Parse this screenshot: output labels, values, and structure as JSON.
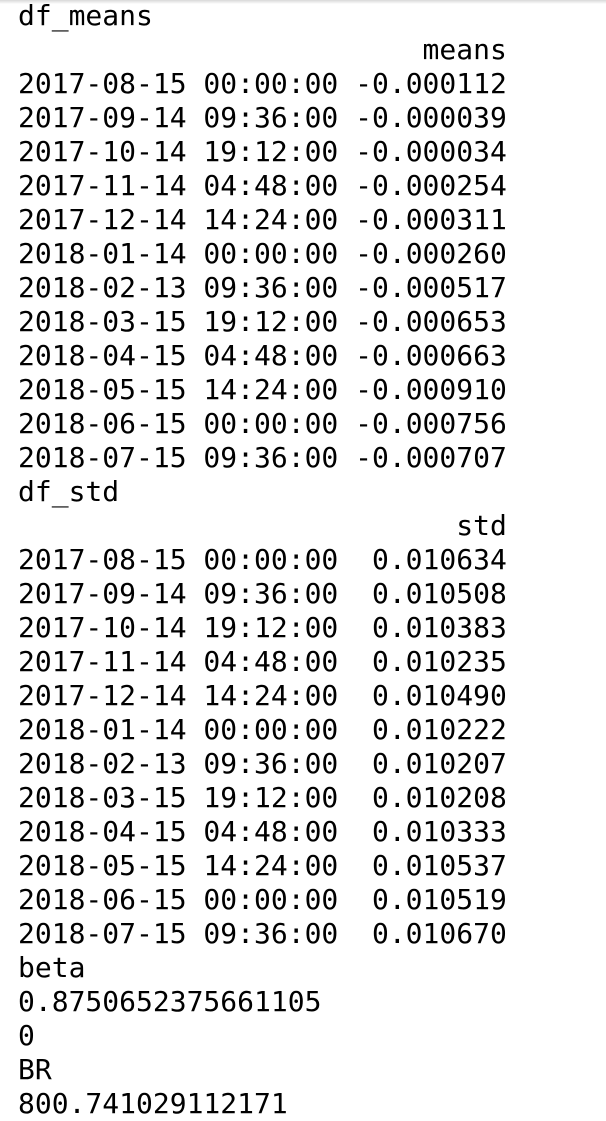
{
  "sections": [
    {
      "name": "df_means",
      "column": "means",
      "rows": [
        {
          "index": "2017-08-15 00:00:00",
          "value": "-0.000112"
        },
        {
          "index": "2017-09-14 09:36:00",
          "value": "-0.000039"
        },
        {
          "index": "2017-10-14 19:12:00",
          "value": "-0.000034"
        },
        {
          "index": "2017-11-14 04:48:00",
          "value": "-0.000254"
        },
        {
          "index": "2017-12-14 14:24:00",
          "value": "-0.000311"
        },
        {
          "index": "2018-01-14 00:00:00",
          "value": "-0.000260"
        },
        {
          "index": "2018-02-13 09:36:00",
          "value": "-0.000517"
        },
        {
          "index": "2018-03-15 19:12:00",
          "value": "-0.000653"
        },
        {
          "index": "2018-04-15 04:48:00",
          "value": "-0.000663"
        },
        {
          "index": "2018-05-15 14:24:00",
          "value": "-0.000910"
        },
        {
          "index": "2018-06-15 00:00:00",
          "value": "-0.000756"
        },
        {
          "index": "2018-07-15 09:36:00",
          "value": "-0.000707"
        }
      ]
    },
    {
      "name": "df_std",
      "column": "std",
      "rows": [
        {
          "index": "2017-08-15 00:00:00",
          "value": "0.010634"
        },
        {
          "index": "2017-09-14 09:36:00",
          "value": "0.010508"
        },
        {
          "index": "2017-10-14 19:12:00",
          "value": "0.010383"
        },
        {
          "index": "2017-11-14 04:48:00",
          "value": "0.010235"
        },
        {
          "index": "2017-12-14 14:24:00",
          "value": "0.010490"
        },
        {
          "index": "2018-01-14 00:00:00",
          "value": "0.010222"
        },
        {
          "index": "2018-02-13 09:36:00",
          "value": "0.010207"
        },
        {
          "index": "2018-03-15 19:12:00",
          "value": "0.010208"
        },
        {
          "index": "2018-04-15 04:48:00",
          "value": "0.010333"
        },
        {
          "index": "2018-05-15 14:24:00",
          "value": "0.010537"
        },
        {
          "index": "2018-06-15 00:00:00",
          "value": "0.010519"
        },
        {
          "index": "2018-07-15 09:36:00",
          "value": "0.010670"
        }
      ]
    }
  ],
  "outputs": [
    "beta",
    "0.8750652375661105",
    "0",
    "BR",
    "800.741029112171"
  ]
}
